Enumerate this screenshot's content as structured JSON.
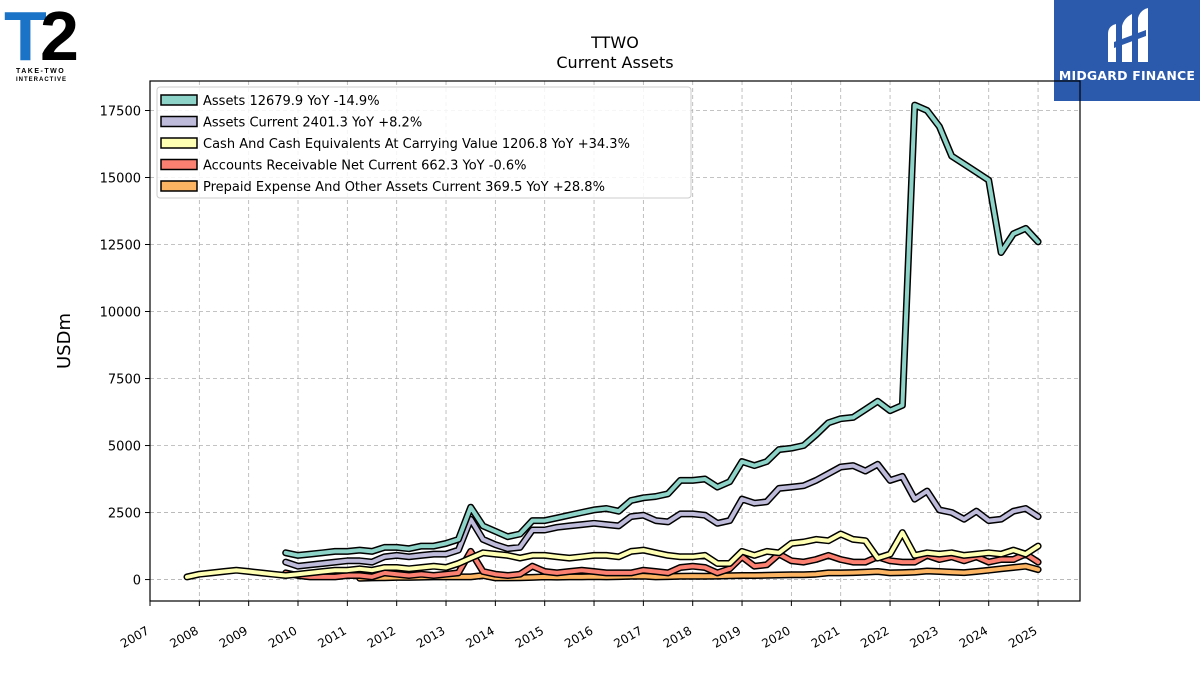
{
  "brand_left": {
    "name": "T2",
    "tagline": "TAKE-TWO INTERACTIVE",
    "color": "#1a73c7"
  },
  "brand_right": {
    "name": "MIDGARD FINANCE",
    "bg_color": "#2b5aad"
  },
  "chart_data": {
    "type": "line",
    "title": "TTWO",
    "subtitle": "Current  Assets",
    "ylabel": "USDm",
    "xlabel": "",
    "xlim": [
      2007.0,
      2025.85
    ],
    "ylim": [
      -800,
      18600
    ],
    "yticks": [
      0,
      2500,
      5000,
      7500,
      10000,
      12500,
      15000,
      17500
    ],
    "ytick_labels": [
      "0",
      "2500",
      "5000",
      "7500",
      "10000",
      "12500",
      "15000",
      "17500"
    ],
    "xticks": [
      2007,
      2008,
      2009,
      2010,
      2011,
      2012,
      2013,
      2014,
      2015,
      2016,
      2017,
      2018,
      2019,
      2020,
      2021,
      2022,
      2023,
      2024,
      2025
    ],
    "xtick_labels": [
      "2007",
      "2008",
      "2009",
      "2010",
      "2011",
      "2012",
      "2013",
      "2014",
      "2015",
      "2016",
      "2017",
      "2018",
      "2019",
      "2020",
      "2021",
      "2022",
      "2023",
      "2024",
      "2025"
    ],
    "grid": true,
    "legend_position": "top-left",
    "series": [
      {
        "name": "Assets",
        "legend": "Assets  12679.9 YoY -14.9%",
        "color": "#8dd3c7",
        "x": [
          2009.75,
          2010.0,
          2010.25,
          2010.5,
          2010.75,
          2011.0,
          2011.25,
          2011.5,
          2011.75,
          2012.0,
          2012.25,
          2012.5,
          2012.75,
          2013.0,
          2013.25,
          2013.5,
          2013.75,
          2014.0,
          2014.25,
          2014.5,
          2014.75,
          2015.0,
          2015.25,
          2015.5,
          2015.75,
          2016.0,
          2016.25,
          2016.5,
          2016.75,
          2017.0,
          2017.25,
          2017.5,
          2017.75,
          2018.0,
          2018.25,
          2018.5,
          2018.75,
          2019.0,
          2019.25,
          2019.5,
          2019.75,
          2020.0,
          2020.25,
          2020.5,
          2020.75,
          2021.0,
          2021.25,
          2021.5,
          2021.75,
          2022.0,
          2022.25,
          2022.5,
          2022.75,
          2023.0,
          2023.25,
          2023.5,
          2023.75,
          2024.0,
          2024.25,
          2024.5,
          2024.75,
          2025.0
        ],
        "y": [
          1000,
          900,
          950,
          1000,
          1050,
          1050,
          1100,
          1050,
          1200,
          1200,
          1150,
          1250,
          1250,
          1350,
          1500,
          2700,
          2000,
          1800,
          1600,
          1700,
          2200,
          2200,
          2300,
          2400,
          2500,
          2600,
          2650,
          2550,
          2950,
          3050,
          3100,
          3200,
          3700,
          3700,
          3750,
          3450,
          3650,
          4400,
          4250,
          4400,
          4850,
          4900,
          5000,
          5400,
          5850,
          6000,
          6050,
          6350,
          6650,
          6300,
          6500,
          17700,
          17500,
          16900,
          15800,
          15500,
          15200,
          14900,
          12200,
          12900,
          13100,
          12600
        ]
      },
      {
        "name": "Assets Current",
        "legend": "Assets Current  2401.3 YoY +8.2%",
        "color": "#bebada",
        "x": [
          2009.75,
          2010.0,
          2010.25,
          2010.5,
          2010.75,
          2011.0,
          2011.25,
          2011.5,
          2011.75,
          2012.0,
          2012.25,
          2012.5,
          2012.75,
          2013.0,
          2013.25,
          2013.5,
          2013.75,
          2014.0,
          2014.25,
          2014.5,
          2014.75,
          2015.0,
          2015.25,
          2015.5,
          2015.75,
          2016.0,
          2016.25,
          2016.5,
          2016.75,
          2017.0,
          2017.25,
          2017.5,
          2017.75,
          2018.0,
          2018.25,
          2018.5,
          2018.75,
          2019.0,
          2019.25,
          2019.5,
          2019.75,
          2020.0,
          2020.25,
          2020.5,
          2020.75,
          2021.0,
          2021.25,
          2021.5,
          2021.75,
          2022.0,
          2022.25,
          2022.5,
          2022.75,
          2023.0,
          2023.25,
          2023.5,
          2023.75,
          2024.0,
          2024.25,
          2024.5,
          2024.75,
          2025.0
        ],
        "y": [
          650,
          500,
          550,
          600,
          650,
          700,
          700,
          650,
          850,
          900,
          850,
          900,
          950,
          950,
          1100,
          2250,
          1500,
          1300,
          1150,
          1200,
          1850,
          1850,
          1950,
          2000,
          2050,
          2100,
          2050,
          2000,
          2350,
          2400,
          2200,
          2150,
          2450,
          2450,
          2400,
          2100,
          2200,
          3000,
          2850,
          2900,
          3400,
          3450,
          3500,
          3700,
          3950,
          4200,
          4250,
          4050,
          4300,
          3700,
          3850,
          3000,
          3300,
          2600,
          2500,
          2250,
          2550,
          2200,
          2250,
          2550,
          2650,
          2350
        ]
      },
      {
        "name": "Cash And Cash Equivalents At Carrying Value",
        "legend": "Cash And Cash Equivalents At Carrying Value  1206.8 YoY +34.3%",
        "color": "#ffffb3",
        "x": [
          2007.75,
          2008.0,
          2008.25,
          2008.5,
          2008.75,
          2009.0,
          2009.25,
          2009.5,
          2009.75,
          2010.0,
          2010.25,
          2010.5,
          2010.75,
          2011.0,
          2011.25,
          2011.5,
          2011.75,
          2012.0,
          2012.25,
          2012.5,
          2012.75,
          2013.0,
          2013.25,
          2013.5,
          2013.75,
          2014.0,
          2014.25,
          2014.5,
          2014.75,
          2015.0,
          2015.25,
          2015.5,
          2015.75,
          2016.0,
          2016.25,
          2016.5,
          2016.75,
          2017.0,
          2017.25,
          2017.5,
          2017.75,
          2018.0,
          2018.25,
          2018.5,
          2018.75,
          2019.0,
          2019.25,
          2019.5,
          2019.75,
          2020.0,
          2020.25,
          2020.5,
          2020.75,
          2021.0,
          2021.25,
          2021.5,
          2021.75,
          2022.0,
          2022.25,
          2022.5,
          2022.75,
          2023.0,
          2023.25,
          2023.5,
          2023.75,
          2024.0,
          2024.25,
          2024.5,
          2024.75,
          2025.0
        ],
        "y": [
          100,
          200,
          250,
          300,
          350,
          300,
          250,
          200,
          150,
          200,
          250,
          300,
          350,
          350,
          400,
          350,
          450,
          450,
          400,
          450,
          500,
          450,
          600,
          800,
          1000,
          950,
          900,
          800,
          900,
          900,
          850,
          800,
          850,
          900,
          900,
          850,
          1050,
          1100,
          1000,
          900,
          850,
          850,
          900,
          600,
          600,
          1050,
          900,
          1050,
          1000,
          1350,
          1400,
          1500,
          1450,
          1700,
          1500,
          1450,
          800,
          950,
          1750,
          900,
          1000,
          950,
          1000,
          900,
          950,
          1000,
          950,
          1100,
          950,
          1250
        ]
      },
      {
        "name": "Accounts Receivable Net Current",
        "legend": "Accounts Receivable Net Current  662.3 YoY -0.6%",
        "color": "#fb8072",
        "x": [
          2009.75,
          2010.0,
          2010.25,
          2010.5,
          2010.75,
          2011.0,
          2011.25,
          2011.5,
          2011.75,
          2012.0,
          2012.25,
          2012.5,
          2012.75,
          2013.0,
          2013.25,
          2013.5,
          2013.75,
          2014.0,
          2014.25,
          2014.5,
          2014.75,
          2015.0,
          2015.25,
          2015.5,
          2015.75,
          2016.0,
          2016.25,
          2016.5,
          2016.75,
          2017.0,
          2017.25,
          2017.5,
          2017.75,
          2018.0,
          2018.25,
          2018.5,
          2018.75,
          2019.0,
          2019.25,
          2019.5,
          2019.75,
          2020.0,
          2020.25,
          2020.5,
          2020.75,
          2021.0,
          2021.25,
          2021.5,
          2021.75,
          2022.0,
          2022.25,
          2022.5,
          2022.75,
          2023.0,
          2023.25,
          2023.5,
          2023.75,
          2024.0,
          2024.25,
          2024.5,
          2024.75,
          2025.0
        ],
        "y": [
          250,
          150,
          100,
          100,
          100,
          150,
          150,
          100,
          250,
          200,
          150,
          200,
          150,
          200,
          250,
          1050,
          300,
          200,
          150,
          200,
          500,
          300,
          250,
          300,
          350,
          300,
          250,
          250,
          250,
          350,
          300,
          250,
          450,
          500,
          450,
          250,
          400,
          850,
          500,
          550,
          950,
          700,
          650,
          750,
          900,
          750,
          650,
          650,
          850,
          700,
          650,
          650,
          900,
          750,
          850,
          700,
          850,
          650,
          750,
          750,
          950,
          650
        ]
      },
      {
        "name": "Prepaid Expense And Other Assets Current",
        "legend": "Prepaid Expense And Other Assets Current  369.5 YoY +28.8%",
        "color": "#fdb462",
        "x": [
          2011.25,
          2011.5,
          2011.75,
          2012.0,
          2012.25,
          2012.5,
          2012.75,
          2013.0,
          2013.25,
          2013.5,
          2013.75,
          2014.0,
          2014.25,
          2014.5,
          2014.75,
          2015.0,
          2015.25,
          2015.5,
          2015.75,
          2016.0,
          2016.25,
          2016.5,
          2016.75,
          2017.0,
          2017.25,
          2017.5,
          2017.75,
          2018.0,
          2018.25,
          2018.5,
          2018.75,
          2019.0,
          2019.25,
          2019.5,
          2019.75,
          2020.0,
          2020.25,
          2020.5,
          2020.75,
          2021.0,
          2021.25,
          2021.5,
          2021.75,
          2022.0,
          2022.25,
          2022.5,
          2022.75,
          2023.0,
          2023.25,
          2023.5,
          2023.75,
          2024.0,
          2024.25,
          2024.5,
          2024.75,
          2025.0
        ],
        "y": [
          50,
          60,
          70,
          80,
          80,
          90,
          100,
          100,
          100,
          100,
          150,
          60,
          60,
          70,
          80,
          100,
          90,
          100,
          100,
          110,
          100,
          110,
          120,
          130,
          100,
          110,
          120,
          130,
          120,
          130,
          140,
          150,
          150,
          160,
          170,
          180,
          180,
          200,
          250,
          250,
          260,
          280,
          300,
          250,
          260,
          280,
          320,
          300,
          280,
          260,
          300,
          350,
          400,
          450,
          500,
          370
        ]
      }
    ]
  }
}
